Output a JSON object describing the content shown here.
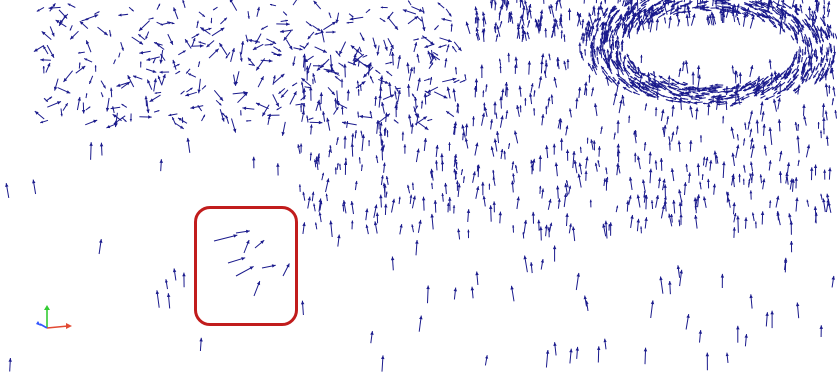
{
  "view": {
    "background_color": "#ffffff",
    "glyph_type": "vector-arrows",
    "glyph_color": "#1a1a8c"
  },
  "annotation": {
    "type": "rounded-rectangle",
    "color": "#c11c1c"
  },
  "orientation_axes": {
    "x_axis_color": "#e24a33",
    "y_axis_color": "#33cc33",
    "z_axis_color": "#3355ff"
  }
}
